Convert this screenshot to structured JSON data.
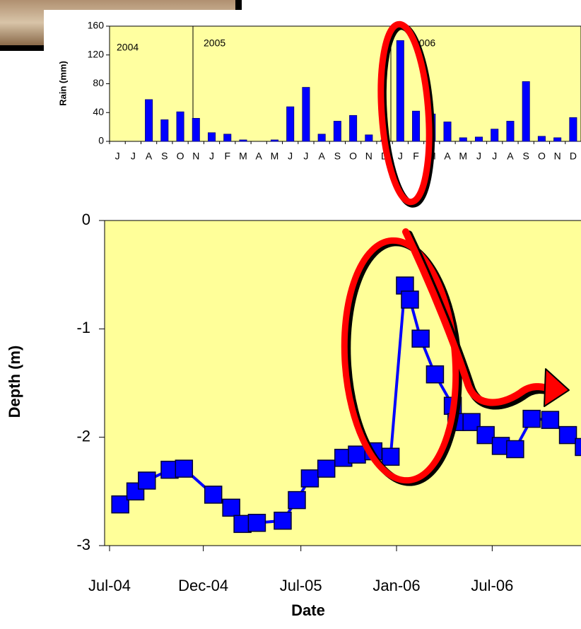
{
  "chart_data": [
    {
      "type": "bar",
      "ylabel": "Rain (mm)",
      "categories": [
        "J",
        "J",
        "A",
        "S",
        "O",
        "N",
        "J",
        "F",
        "M",
        "A",
        "M",
        "J",
        "J",
        "A",
        "S",
        "O",
        "N",
        "D",
        "J",
        "F",
        "M",
        "A",
        "M",
        "J",
        "J",
        "A",
        "S",
        "O",
        "N",
        "D"
      ],
      "values": [
        0,
        0,
        58,
        30,
        41,
        32,
        12,
        10,
        2,
        0,
        2,
        48,
        75,
        10,
        28,
        36,
        9,
        2,
        140,
        42,
        38,
        27,
        5,
        6,
        17,
        28,
        83,
        7,
        5,
        33
      ],
      "color": "#0000ff",
      "ylim": [
        0,
        160
      ],
      "yticks": [
        0,
        40,
        80,
        120,
        160
      ],
      "annotations": [
        "2004",
        "2005",
        "2006"
      ]
    },
    {
      "type": "line",
      "xlabel": "Date",
      "ylabel": "Depth (m)",
      "x": [
        2004.556,
        2004.635,
        2004.695,
        2004.814,
        2004.889,
        2005.042,
        2005.136,
        2005.195,
        2005.27,
        2005.405,
        2005.479,
        2005.547,
        2005.633,
        2005.722,
        2005.793,
        2005.879,
        2005.969,
        2006.044,
        2006.07,
        2006.126,
        2006.201,
        2006.294,
        2006.313,
        2006.392,
        2006.466,
        2006.545,
        2006.62,
        2006.706,
        2006.803,
        2006.896,
        2006.979
      ],
      "values": [
        -2.62,
        -2.5,
        -2.4,
        -2.3,
        -2.29,
        -2.53,
        -2.65,
        -2.8,
        -2.79,
        -2.77,
        -2.58,
        -2.38,
        -2.29,
        -2.19,
        -2.16,
        -2.13,
        -2.18,
        -0.6,
        -0.73,
        -1.09,
        -1.42,
        -1.71,
        -1.86,
        -1.86,
        -1.98,
        -2.08,
        -2.11,
        -1.83,
        -1.84,
        -1.98,
        -2.09
      ],
      "color": "#0000ff",
      "xlim": [
        2004.5,
        2006.99
      ],
      "xticks": [
        {
          "value": 2004.5,
          "label": "Jul-04"
        },
        {
          "value": 2004.99,
          "label": "Dec-04"
        },
        {
          "value": 2005.5,
          "label": "Jul-05"
        },
        {
          "value": 2006.0,
          "label": "Jan-06"
        },
        {
          "value": 2006.5,
          "label": "Jul-06"
        }
      ],
      "ylim": [
        -3,
        0
      ],
      "yticks": [
        0,
        -1,
        -2,
        -3
      ]
    }
  ]
}
